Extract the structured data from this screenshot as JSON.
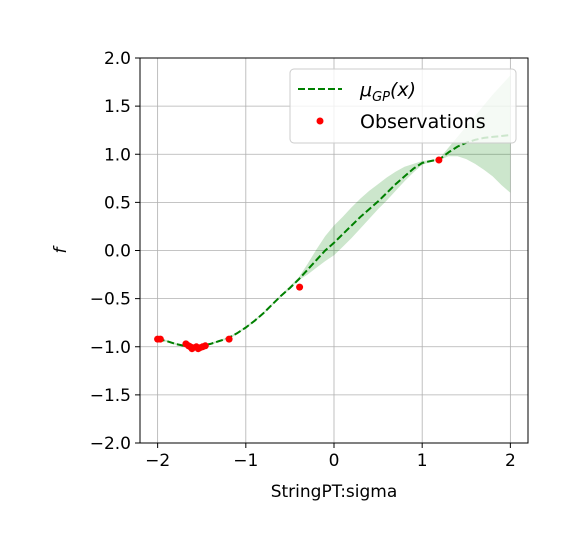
{
  "chart_data": {
    "type": "line",
    "xlabel": "StringPT:sigma",
    "ylabel": "f",
    "xlim": [
      -2.2,
      2.2
    ],
    "ylim": [
      -2.0,
      2.0
    ],
    "xticks": [
      -2,
      -1,
      0,
      1,
      2
    ],
    "xtick_labels": [
      "−2",
      "−1",
      "0",
      "1",
      "2"
    ],
    "yticks": [
      -2.0,
      -1.5,
      -1.0,
      -0.5,
      0.0,
      0.5,
      1.0,
      1.5,
      2.0
    ],
    "ytick_labels": [
      "−2.0",
      "−1.5",
      "−1.0",
      "−0.5",
      "0.0",
      "0.5",
      "1.0",
      "1.5",
      "2.0"
    ],
    "grid": true,
    "legend_position": "top-right",
    "series": [
      {
        "name": "μGP(x)",
        "kind": "line",
        "style": "dashed",
        "color": "#008000",
        "x": [
          -2.0,
          -1.9,
          -1.8,
          -1.7,
          -1.6,
          -1.5,
          -1.4,
          -1.3,
          -1.2,
          -1.1,
          -1.0,
          -0.9,
          -0.8,
          -0.7,
          -0.6,
          -0.5,
          -0.4,
          -0.3,
          -0.2,
          -0.1,
          0.0,
          0.1,
          0.2,
          0.3,
          0.4,
          0.5,
          0.6,
          0.7,
          0.8,
          0.9,
          1.0,
          1.1,
          1.2,
          1.3,
          1.4,
          1.5,
          1.6,
          1.7,
          1.8,
          1.9,
          2.0
        ],
        "y": [
          -0.92,
          -0.94,
          -0.97,
          -0.99,
          -1.0,
          -0.99,
          -0.97,
          -0.94,
          -0.91,
          -0.86,
          -0.8,
          -0.73,
          -0.65,
          -0.56,
          -0.47,
          -0.39,
          -0.3,
          -0.2,
          -0.1,
          0.0,
          0.08,
          0.17,
          0.26,
          0.35,
          0.43,
          0.51,
          0.6,
          0.69,
          0.77,
          0.85,
          0.91,
          0.93,
          0.95,
          1.02,
          1.08,
          1.12,
          1.15,
          1.17,
          1.18,
          1.19,
          1.2
        ]
      },
      {
        "name": "Observations",
        "kind": "scatter",
        "color": "#ff0000",
        "x": [
          -2.0,
          -1.97,
          -1.68,
          -1.65,
          -1.63,
          -1.61,
          -1.6,
          -1.56,
          -1.54,
          -1.52,
          -1.49,
          -1.46,
          -1.19,
          -0.39,
          1.19
        ],
        "y": [
          -0.92,
          -0.92,
          -0.97,
          -0.99,
          -1.0,
          -1.02,
          -1.01,
          -1.0,
          -1.02,
          -1.01,
          -1.0,
          -0.99,
          -0.92,
          -0.38,
          0.94
        ]
      }
    ],
    "confidence_band": {
      "color": "#008000",
      "opacity": 0.2,
      "x": [
        -2.0,
        -1.9,
        -1.8,
        -1.7,
        -1.6,
        -1.5,
        -1.4,
        -1.3,
        -1.2,
        -1.1,
        -1.0,
        -0.9,
        -0.8,
        -0.7,
        -0.6,
        -0.5,
        -0.4,
        -0.3,
        -0.2,
        -0.1,
        0.0,
        0.1,
        0.2,
        0.3,
        0.4,
        0.5,
        0.6,
        0.7,
        0.8,
        0.9,
        1.0,
        1.1,
        1.2,
        1.3,
        1.4,
        1.5,
        1.6,
        1.7,
        1.8,
        1.9,
        2.0
      ],
      "lower": [
        -0.93,
        -0.95,
        -0.98,
        -1.0,
        -1.01,
        -1.0,
        -0.98,
        -0.95,
        -0.92,
        -0.87,
        -0.81,
        -0.74,
        -0.66,
        -0.57,
        -0.48,
        -0.4,
        -0.31,
        -0.25,
        -0.18,
        -0.11,
        -0.05,
        0.04,
        0.13,
        0.23,
        0.33,
        0.43,
        0.52,
        0.62,
        0.72,
        0.81,
        0.89,
        0.92,
        0.94,
        0.98,
        0.98,
        0.95,
        0.9,
        0.84,
        0.77,
        0.68,
        0.6
      ],
      "upper": [
        -0.91,
        -0.93,
        -0.96,
        -0.98,
        -0.99,
        -0.98,
        -0.96,
        -0.93,
        -0.9,
        -0.85,
        -0.79,
        -0.72,
        -0.64,
        -0.55,
        -0.46,
        -0.37,
        -0.28,
        -0.14,
        0.01,
        0.15,
        0.26,
        0.35,
        0.45,
        0.54,
        0.62,
        0.69,
        0.76,
        0.82,
        0.87,
        0.9,
        0.93,
        0.94,
        0.96,
        1.07,
        1.18,
        1.29,
        1.4,
        1.51,
        1.62,
        1.72,
        1.82
      ]
    }
  }
}
